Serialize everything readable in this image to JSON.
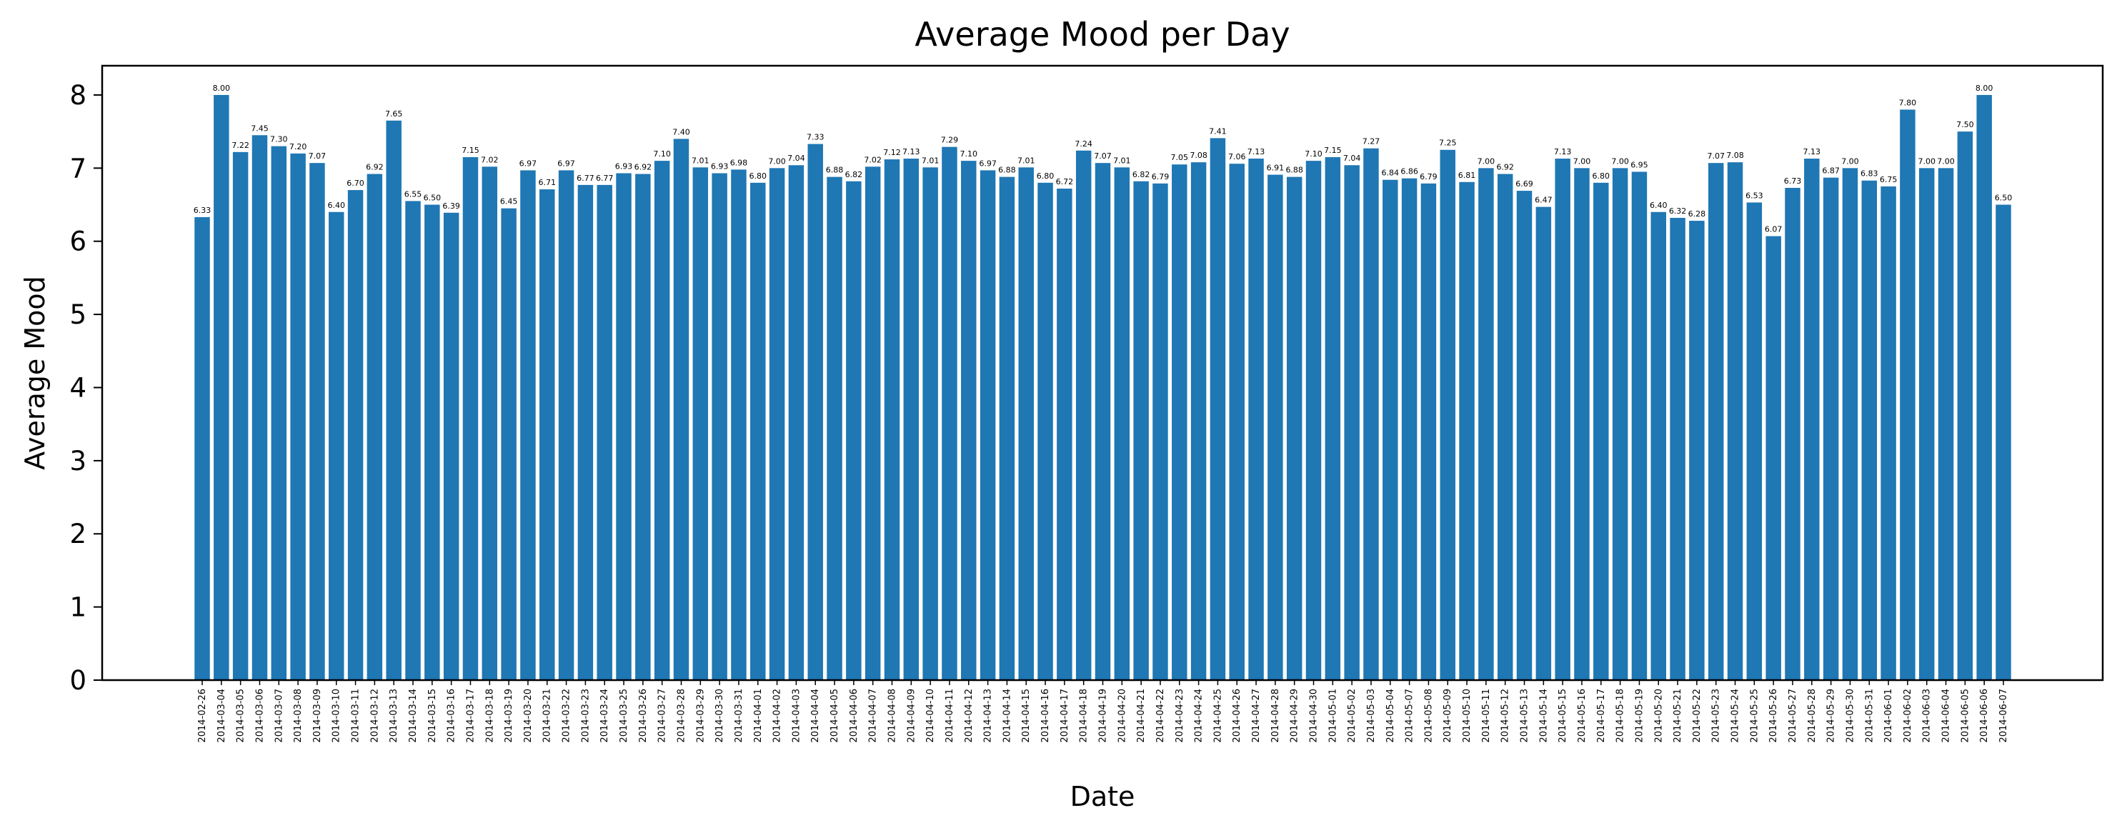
{
  "chart_data": {
    "type": "bar",
    "title": "Average Mood per Day",
    "xlabel": "Date",
    "ylabel": "Average Mood",
    "ylim": [
      0,
      8.4
    ],
    "yticks": [
      0,
      1,
      2,
      3,
      4,
      5,
      6,
      7,
      8
    ],
    "grid": false,
    "legend": "none",
    "bar_color": "#1f77b4",
    "categories": [
      "2014-02-26",
      "2014-03-04",
      "2014-03-05",
      "2014-03-06",
      "2014-03-07",
      "2014-03-08",
      "2014-03-09",
      "2014-03-10",
      "2014-03-11",
      "2014-03-12",
      "2014-03-13",
      "2014-03-14",
      "2014-03-15",
      "2014-03-16",
      "2014-03-17",
      "2014-03-18",
      "2014-03-19",
      "2014-03-20",
      "2014-03-21",
      "2014-03-22",
      "2014-03-23",
      "2014-03-24",
      "2014-03-25",
      "2014-03-26",
      "2014-03-27",
      "2014-03-28",
      "2014-03-29",
      "2014-03-30",
      "2014-03-31",
      "2014-04-01",
      "2014-04-02",
      "2014-04-03",
      "2014-04-04",
      "2014-04-05",
      "2014-04-06",
      "2014-04-07",
      "2014-04-08",
      "2014-04-09",
      "2014-04-10",
      "2014-04-11",
      "2014-04-12",
      "2014-04-13",
      "2014-04-14",
      "2014-04-15",
      "2014-04-16",
      "2014-04-17",
      "2014-04-18",
      "2014-04-19",
      "2014-04-20",
      "2014-04-21",
      "2014-04-22",
      "2014-04-23",
      "2014-04-24",
      "2014-04-25",
      "2014-04-26",
      "2014-04-27",
      "2014-04-28",
      "2014-04-29",
      "2014-04-30",
      "2014-05-01",
      "2014-05-02",
      "2014-05-03",
      "2014-05-04",
      "2014-05-07",
      "2014-05-08",
      "2014-05-09",
      "2014-05-10",
      "2014-05-11",
      "2014-05-12",
      "2014-05-13",
      "2014-05-14",
      "2014-05-15",
      "2014-05-16",
      "2014-05-17",
      "2014-05-18",
      "2014-05-19",
      "2014-05-20",
      "2014-05-21",
      "2014-05-22",
      "2014-05-23",
      "2014-05-24",
      "2014-05-25",
      "2014-05-26",
      "2014-05-27",
      "2014-05-28",
      "2014-05-29",
      "2014-05-30",
      "2014-05-31",
      "2014-06-01",
      "2014-06-02",
      "2014-06-03",
      "2014-06-04",
      "2014-06-05",
      "2014-06-06",
      "2014-06-07"
    ],
    "values": [
      6.33,
      8.0,
      7.22,
      7.45,
      7.3,
      7.2,
      7.07,
      6.4,
      6.7,
      6.92,
      7.65,
      6.55,
      6.5,
      6.39,
      7.15,
      7.02,
      6.45,
      6.97,
      6.71,
      6.97,
      6.77,
      6.77,
      6.93,
      6.92,
      7.1,
      7.4,
      7.01,
      6.93,
      6.98,
      6.8,
      7.0,
      7.04,
      7.33,
      6.88,
      6.82,
      7.02,
      7.12,
      7.13,
      7.01,
      7.29,
      7.1,
      6.97,
      6.88,
      7.01,
      6.8,
      6.72,
      7.24,
      7.07,
      7.01,
      6.82,
      6.79,
      7.05,
      7.08,
      7.41,
      7.06,
      7.13,
      6.91,
      6.88,
      7.1,
      7.15,
      7.04,
      7.27,
      6.84,
      6.86,
      6.79,
      7.25,
      6.81,
      7.0,
      6.92,
      6.69,
      6.47,
      7.13,
      7.0,
      6.8,
      7.0,
      6.95,
      6.4,
      6.32,
      6.28,
      7.07,
      7.08,
      6.53,
      6.07,
      6.73,
      7.13,
      6.87,
      7.0,
      6.83,
      6.75,
      7.8,
      7.0,
      7.0,
      7.5,
      8.0,
      6.5
    ],
    "value_labels": [
      "6.33",
      "8.00",
      "7.22",
      "7.45",
      "7.30",
      "7.20",
      "7.07",
      "6.40",
      "6.70",
      "6.92",
      "7.65",
      "6.55",
      "6.50",
      "6.39",
      "7.15",
      "7.02",
      "6.45",
      "6.97",
      "6.71",
      "6.97",
      "6.77",
      "6.77",
      "6.93",
      "6.92",
      "7.10",
      "7.40",
      "7.01",
      "6.93",
      "6.98",
      "6.80",
      "7.00",
      "7.04",
      "7.33",
      "6.88",
      "6.82",
      "7.02",
      "7.12",
      "7.13",
      "7.01",
      "7.29",
      "7.10",
      "6.97",
      "6.88",
      "7.01",
      "6.80",
      "6.72",
      "7.24",
      "7.07",
      "7.01",
      "6.82",
      "6.79",
      "7.05",
      "7.08",
      "7.41",
      "7.06",
      "7.13",
      "6.91",
      "6.88",
      "7.10",
      "7.15",
      "7.04",
      "7.27",
      "6.84",
      "6.86",
      "6.79",
      "7.25",
      "6.81",
      "7.00",
      "6.92",
      "6.69",
      "6.47",
      "7.13",
      "7.00",
      "6.80",
      "7.00",
      "6.95",
      "6.40",
      "6.32",
      "6.28",
      "7.07",
      "7.08",
      "6.53",
      "6.07",
      "6.73",
      "7.13",
      "6.87",
      "7.00",
      "6.83",
      "6.75",
      "7.80",
      "7.00",
      "7.00",
      "7.50",
      "8.00",
      "6.50"
    ]
  }
}
